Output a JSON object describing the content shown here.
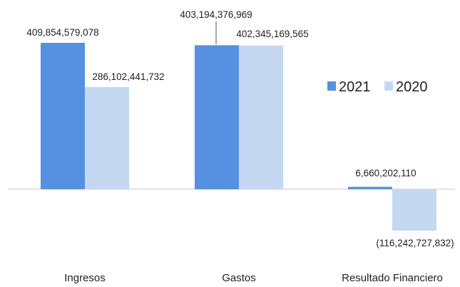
{
  "chart_data": {
    "type": "bar",
    "title": "",
    "xlabel": "",
    "ylabel": "",
    "categories": [
      "Ingresos",
      "Gastos",
      "Resultado Financiero"
    ],
    "series": [
      {
        "name": "2021",
        "color": "#5591E0",
        "values": [
          409854579078,
          403194376969,
          6660202110
        ]
      },
      {
        "name": "2020",
        "color": "#C5D8F2",
        "values": [
          286102441732,
          402345169565,
          -116242727832
        ]
      }
    ],
    "data_labels": [
      [
        "409,854,579,078",
        "286,102,441,732"
      ],
      [
        "403,194,376,969",
        "402,345,169,565"
      ],
      [
        "6,660,202,110",
        "(116,242,727,832)"
      ]
    ],
    "ylim": [
      -116242727832,
      409854579078
    ],
    "grid": false,
    "legend_position": "right",
    "baseline_color": "#D0D0D0"
  }
}
